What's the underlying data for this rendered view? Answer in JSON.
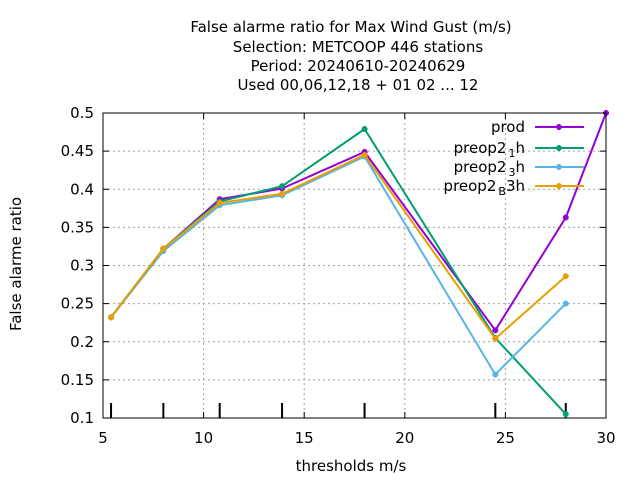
{
  "chart_data": {
    "type": "line",
    "title_lines": [
      "False alarme ratio  for Max Wind Gust (m/s)",
      "Selection: METCOOP    446 stations",
      "Period: 20240610-20240629",
      "Used  00,06,12,18 + 01 02 ... 12"
    ],
    "xlabel": "thresholds m/s",
    "ylabel": "False alarme ratio",
    "xlim": [
      5,
      30
    ],
    "ylim": [
      0.1,
      0.5
    ],
    "x_ticks": [
      5,
      10,
      15,
      20,
      25,
      30
    ],
    "x_tick_labels": [
      "5",
      "10",
      "15",
      "20",
      "25",
      "30"
    ],
    "y_ticks": [
      0.1,
      0.15,
      0.2,
      0.25,
      0.3,
      0.35,
      0.4,
      0.45,
      0.5
    ],
    "y_tick_labels": [
      "0.1",
      "0.15",
      "0.2",
      "0.25",
      "0.3",
      "0.35",
      "0.4",
      "0.45",
      "0.5"
    ],
    "grid": true,
    "legend_position": "top-right",
    "threshold_marks_x": [
      5.4,
      8.0,
      10.8,
      13.9,
      18.0,
      24.5,
      28.0
    ],
    "series": [
      {
        "name": "prod",
        "label_main": "prod",
        "label_sub": "",
        "label_tail": "",
        "color": "#9400d3",
        "x": [
          5.4,
          8.0,
          10.8,
          13.9,
          18.0,
          24.5,
          28.0,
          30.0
        ],
        "y": [
          0.232,
          0.322,
          0.387,
          0.401,
          0.449,
          0.215,
          0.363,
          0.5
        ]
      },
      {
        "name": "preop2 1 h",
        "label_main": "preop2",
        "label_sub": "1",
        "label_tail": "h",
        "color": "#009e73",
        "x": [
          5.4,
          8.0,
          10.8,
          13.9,
          18.0,
          24.5,
          28.0
        ],
        "y": [
          0.232,
          0.322,
          0.384,
          0.404,
          0.479,
          0.205,
          0.105
        ]
      },
      {
        "name": "preop2 3 h",
        "label_main": "preop2",
        "label_sub": "3",
        "label_tail": "h",
        "color": "#56b4e9",
        "x": [
          5.4,
          8.0,
          10.8,
          13.9,
          18.0,
          24.5,
          28.0
        ],
        "y": [
          0.232,
          0.319,
          0.379,
          0.392,
          0.443,
          0.157,
          0.25
        ]
      },
      {
        "name": "preop2 B 3h",
        "label_main": "preop2",
        "label_sub": "B",
        "label_tail": "3h",
        "color": "#e69f00",
        "x": [
          5.4,
          8.0,
          10.8,
          13.9,
          18.0,
          24.5,
          28.0
        ],
        "y": [
          0.232,
          0.322,
          0.382,
          0.394,
          0.445,
          0.204,
          0.286
        ]
      }
    ]
  }
}
